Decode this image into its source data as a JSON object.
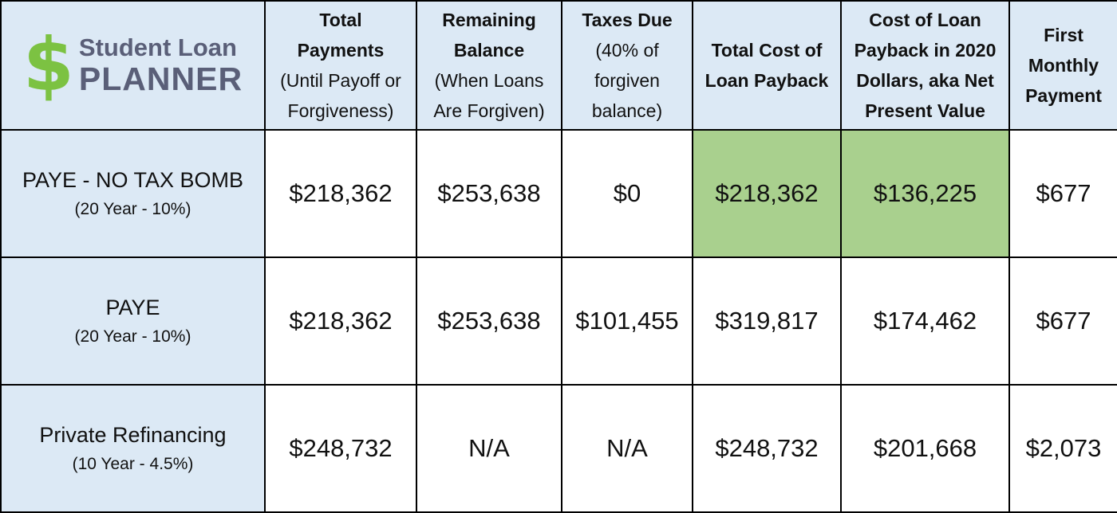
{
  "logo": {
    "symbol": "$",
    "line1": "Student Loan",
    "line2": "PLANNER",
    "symbol_color": "#7cc242"
  },
  "headers": [
    {
      "bold_lines": [
        "Total",
        "Payments"
      ],
      "normal_lines": [
        "(Until Payoff or",
        "Forgiveness)"
      ]
    },
    {
      "bold_lines": [
        "Remaining",
        "Balance"
      ],
      "normal_lines": [
        "(When Loans",
        "Are Forgiven)"
      ]
    },
    {
      "bold_lines": [
        "Taxes Due"
      ],
      "normal_lines": [
        "(40% of",
        "forgiven",
        "balance)"
      ]
    },
    {
      "bold_lines": [
        "Total Cost of",
        "Loan Payback"
      ],
      "normal_lines": []
    },
    {
      "bold_lines": [
        "Cost of Loan",
        "Payback in 2020",
        "Dollars, aka Net",
        "Present Value"
      ],
      "normal_lines": []
    },
    {
      "bold_lines": [
        "First",
        "Monthly",
        "Payment"
      ],
      "normal_lines": []
    }
  ],
  "rows": [
    {
      "plan": "PAYE - NO TAX BOMB",
      "sub": "(20 Year - 10%)",
      "values": [
        "$218,362",
        "$253,638",
        "$0",
        "$218,362",
        "$136,225",
        "$677"
      ]
    },
    {
      "plan": "PAYE",
      "sub": "(20 Year - 10%)",
      "values": [
        "$218,362",
        "$253,638",
        "$101,455",
        "$319,817",
        "$174,462",
        "$677"
      ]
    },
    {
      "plan": "Private Refinancing",
      "sub": "(10 Year - 4.5%)",
      "values": [
        "$248,732",
        "N/A",
        "N/A",
        "$248,732",
        "$201,668",
        "$2,073"
      ]
    }
  ],
  "colors": {
    "header_bg": "#dce9f5",
    "highlight": "#a9d08e",
    "na_text": "#c55a11",
    "logo_text": "#5a5f78"
  }
}
